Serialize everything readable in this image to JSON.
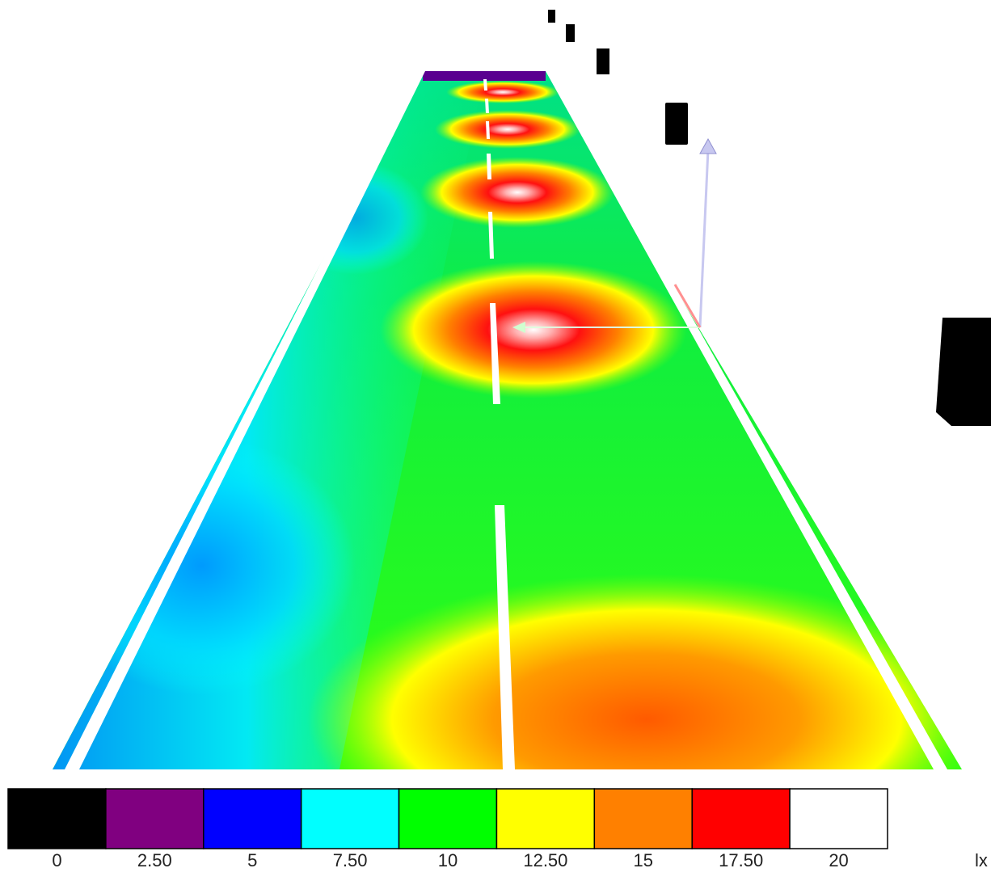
{
  "chart_data": {
    "type": "heatmap",
    "title": "",
    "unit": "lx",
    "scale_min": 0,
    "scale_max": 20,
    "legend_placement": "bottom",
    "legend": [
      {
        "value": 0,
        "label": "0",
        "color": "#000000"
      },
      {
        "value": 2.5,
        "label": "2.50",
        "color": "#800080"
      },
      {
        "value": 5,
        "label": "5",
        "color": "#0000ff"
      },
      {
        "value": 7.5,
        "label": "7.50",
        "color": "#00ffff"
      },
      {
        "value": 10,
        "label": "10",
        "color": "#00ff00"
      },
      {
        "value": 12.5,
        "label": "12.50",
        "color": "#ffff00"
      },
      {
        "value": 15,
        "label": "15",
        "color": "#ff8000"
      },
      {
        "value": 17.5,
        "label": "17.50",
        "color": "#ff0000"
      },
      {
        "value": 20,
        "label": "20",
        "color": "#ffffff"
      }
    ]
  }
}
